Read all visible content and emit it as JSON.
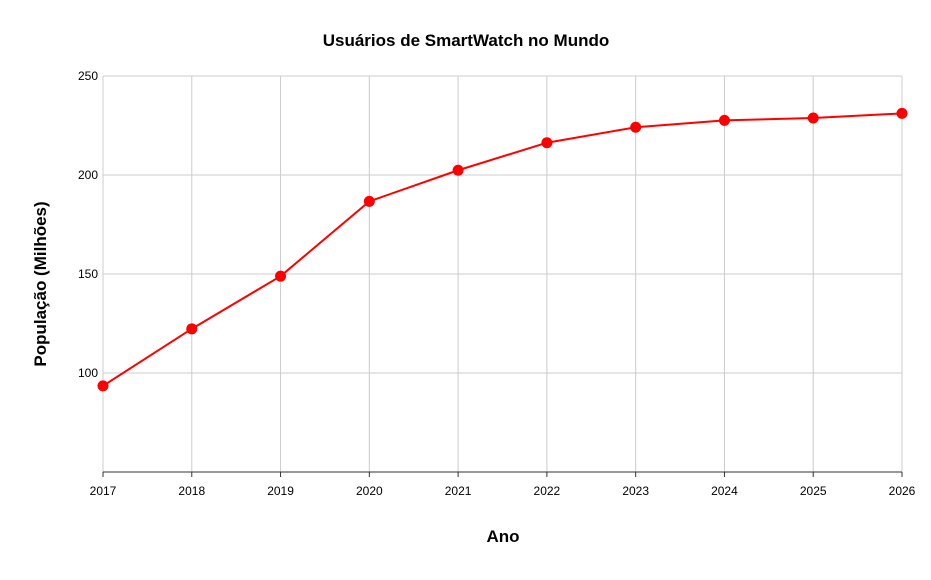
{
  "chart_data": {
    "type": "line",
    "title": "Usuários de SmartWatch no Mundo",
    "xlabel": "Ano",
    "ylabel": "População (Milhões)",
    "x": [
      "2017",
      "2018",
      "2019",
      "2020",
      "2021",
      "2022",
      "2023",
      "2024",
      "2025",
      "2026"
    ],
    "yticks": [
      "100",
      "150",
      "200",
      "250"
    ],
    "ylim": [
      50,
      250
    ],
    "grid": true,
    "series": [
      {
        "values": [
          93.5,
          122.3,
          148.9,
          186.7,
          202.4,
          216.3,
          224.1,
          227.6,
          228.8,
          231.1
        ],
        "color": "#ff0000"
      }
    ]
  }
}
